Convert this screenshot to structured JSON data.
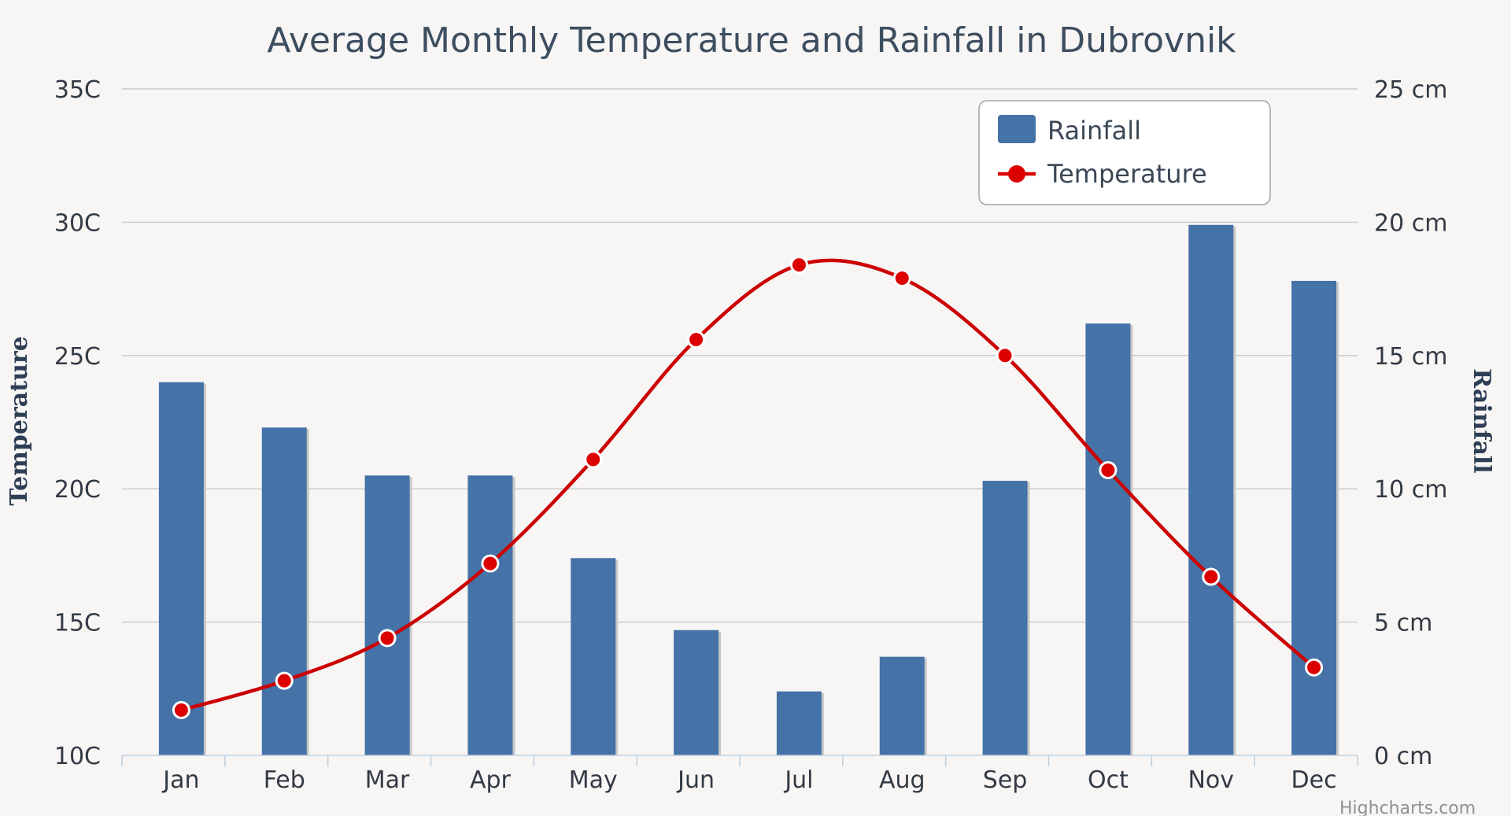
{
  "chart_data": {
    "type": "bar+line",
    "title": "Average Monthly Temperature and Rainfall in Dubrovnik",
    "categories": [
      "Jan",
      "Feb",
      "Mar",
      "Apr",
      "May",
      "Jun",
      "Jul",
      "Aug",
      "Sep",
      "Oct",
      "Nov",
      "Dec"
    ],
    "series": [
      {
        "name": "Rainfall",
        "type": "bar",
        "axis": "right",
        "color": "#4572a7",
        "values": [
          14.0,
          12.3,
          10.5,
          10.5,
          7.4,
          4.7,
          2.4,
          3.7,
          10.3,
          16.2,
          19.9,
          17.8
        ]
      },
      {
        "name": "Temperature",
        "type": "line",
        "axis": "left",
        "color": "#dd0000",
        "values": [
          11.7,
          12.8,
          14.4,
          17.2,
          21.1,
          25.6,
          28.4,
          27.9,
          25.0,
          20.7,
          16.7,
          13.3
        ]
      }
    ],
    "yAxis": {
      "title": "Temperature",
      "range": [
        10,
        35
      ],
      "ticks": [
        10,
        15,
        20,
        25,
        30,
        35
      ],
      "tickLabels": [
        "10C",
        "15C",
        "20C",
        "25C",
        "30C",
        "35C"
      ]
    },
    "y2Axis": {
      "title": "Rainfall",
      "range": [
        0,
        25
      ],
      "ticks": [
        0,
        5,
        10,
        15,
        20,
        25
      ],
      "tickLabels": [
        "0 cm",
        "5 cm",
        "10 cm",
        "15 cm",
        "20 cm",
        "25 cm"
      ]
    },
    "legend": {
      "position": "top-right",
      "items": [
        "Rainfall",
        "Temperature"
      ]
    },
    "credit": "Highcharts.com"
  }
}
